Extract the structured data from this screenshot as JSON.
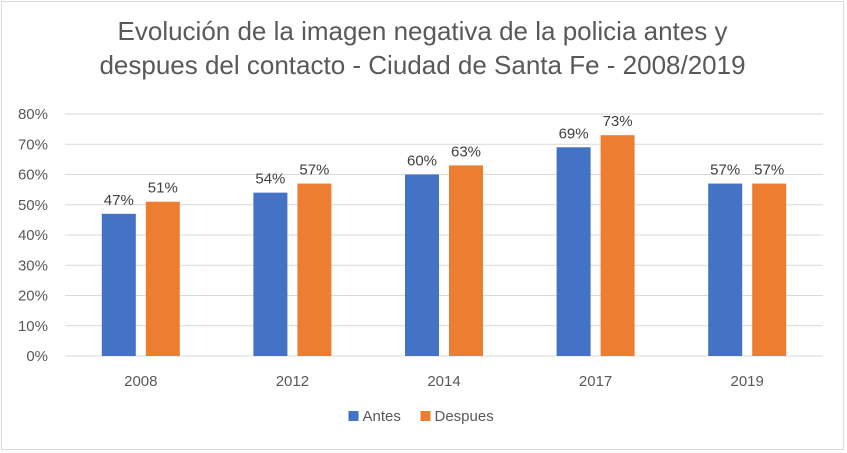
{
  "chart_data": {
    "type": "bar",
    "title_lines": [
      "Evolución de la imagen negativa de la policia antes y",
      "despues del contacto - Ciudad de Santa Fe - 2008/2019"
    ],
    "categories": [
      "2008",
      "2012",
      "2014",
      "2017",
      "2019"
    ],
    "series": [
      {
        "name": "Antes",
        "color": "#4472c4",
        "values": [
          47,
          54,
          60,
          69,
          57
        ],
        "labels": [
          "47%",
          "54%",
          "60%",
          "69%",
          "57%"
        ]
      },
      {
        "name": "Despues",
        "color": "#ed7d31",
        "values": [
          51,
          57,
          63,
          73,
          57
        ],
        "labels": [
          "51%",
          "57%",
          "63%",
          "73%",
          "57%"
        ]
      }
    ],
    "ylim": [
      0,
      80
    ],
    "yticks": [
      "0%",
      "10%",
      "20%",
      "30%",
      "40%",
      "50%",
      "60%",
      "70%",
      "80%"
    ],
    "grid": true,
    "legend_position": "bottom"
  }
}
